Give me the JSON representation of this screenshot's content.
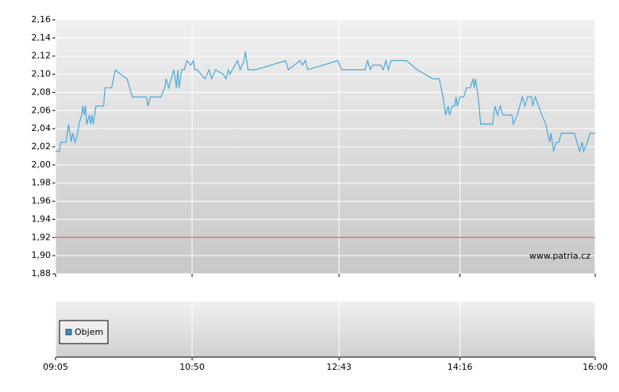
{
  "chart_data": [
    {
      "type": "line",
      "color": "#4aa8d8",
      "x": [
        "09:05",
        "09:08",
        "09:09",
        "09:13",
        "09:15",
        "09:17",
        "09:18",
        "09:20",
        "09:22",
        "09:23",
        "09:25",
        "09:26",
        "09:27",
        "09:28",
        "09:29",
        "09:31",
        "09:32",
        "09:33",
        "09:34",
        "09:36",
        "09:42",
        "09:43",
        "09:48",
        "09:51",
        "09:55",
        "10:00",
        "10:04",
        "10:15",
        "10:16",
        "10:18",
        "10:26",
        "10:29",
        "10:30",
        "10:32",
        "10:34",
        "10:36",
        "10:38",
        "10:39",
        "10:40",
        "10:42",
        "10:44",
        "10:46",
        "10:49",
        "10:51",
        "10:52",
        "10:54",
        "10:57",
        "11:00",
        "11:03",
        "11:05",
        "11:08",
        "11:14",
        "11:16",
        "11:18",
        "11:19",
        "11:21",
        "11:25",
        "11:27",
        "11:30",
        "11:31",
        "11:33",
        "11:39",
        "12:02",
        "12:04",
        "12:13",
        "12:15",
        "12:17",
        "12:19",
        "12:42",
        "12:45",
        "13:03",
        "13:05",
        "13:07",
        "13:09",
        "13:15",
        "13:17",
        "13:19",
        "13:21",
        "13:23",
        "13:35",
        "13:43",
        "13:55",
        "14:00",
        "14:03",
        "14:05",
        "14:07",
        "14:08",
        "14:10",
        "14:12",
        "14:13",
        "14:14",
        "14:16",
        "14:19",
        "14:21",
        "14:24",
        "14:26",
        "14:27",
        "14:28",
        "14:30",
        "14:32",
        "14:41",
        "14:43",
        "14:45",
        "14:47",
        "14:49",
        "14:56",
        "14:57",
        "15:00",
        "15:02",
        "15:04",
        "15:06",
        "15:08",
        "15:11",
        "15:12",
        "15:14",
        "15:19",
        "15:22",
        "15:25",
        "15:26",
        "15:28",
        "15:30",
        "15:32",
        "15:34",
        "15:44",
        "15:46",
        "15:48",
        "15:50",
        "15:51",
        "15:54",
        "15:56",
        "16:00"
      ],
      "values": [
        2.015,
        2.015,
        2.025,
        2.025,
        2.045,
        2.025,
        2.035,
        2.025,
        2.035,
        2.045,
        2.055,
        2.065,
        2.055,
        2.065,
        2.045,
        2.055,
        2.045,
        2.055,
        2.045,
        2.065,
        2.065,
        2.085,
        2.085,
        2.105,
        2.1,
        2.095,
        2.075,
        2.075,
        2.065,
        2.075,
        2.075,
        2.085,
        2.095,
        2.085,
        2.095,
        2.105,
        2.085,
        2.105,
        2.085,
        2.105,
        2.105,
        2.115,
        2.11,
        2.115,
        2.105,
        2.105,
        2.1,
        2.095,
        2.105,
        2.095,
        2.105,
        2.1,
        2.095,
        2.105,
        2.1,
        2.105,
        2.115,
        2.105,
        2.115,
        2.125,
        2.105,
        2.105,
        2.115,
        2.105,
        2.115,
        2.11,
        2.115,
        2.105,
        2.115,
        2.105,
        2.105,
        2.115,
        2.105,
        2.11,
        2.11,
        2.105,
        2.115,
        2.105,
        2.115,
        2.115,
        2.105,
        2.095,
        2.095,
        2.075,
        2.055,
        2.065,
        2.055,
        2.065,
        2.065,
        2.075,
        2.065,
        2.075,
        2.075,
        2.085,
        2.085,
        2.095,
        2.085,
        2.095,
        2.075,
        2.045,
        2.045,
        2.065,
        2.055,
        2.065,
        2.055,
        2.055,
        2.045,
        2.055,
        2.065,
        2.075,
        2.065,
        2.075,
        2.075,
        2.065,
        2.075,
        2.055,
        2.045,
        2.025,
        2.035,
        2.015,
        2.025,
        2.025,
        2.035,
        2.035,
        2.025,
        2.015,
        2.025,
        2.015,
        2.025,
        2.035,
        2.035
      ],
      "xlim": [
        "09:05",
        "16:00"
      ],
      "xticks": [
        "09:05",
        "10:50",
        "12:43",
        "14:16",
        "16:00"
      ],
      "ylim": [
        1.88,
        2.16
      ],
      "yticks": [
        {
          "value": 1.88,
          "label": "1,88"
        },
        {
          "value": 1.9,
          "label": "1,90"
        },
        {
          "value": 1.92,
          "label": "1,92"
        },
        {
          "value": 1.94,
          "label": "1,94"
        },
        {
          "value": 1.96,
          "label": "1,96"
        },
        {
          "value": 1.98,
          "label": "1,98"
        },
        {
          "value": 2,
          "label": "2,00"
        },
        {
          "value": 2.02,
          "label": "2,02"
        },
        {
          "value": 2.04,
          "label": "2,04"
        },
        {
          "value": 2.06,
          "label": "2,06"
        },
        {
          "value": 2.08,
          "label": "2,08"
        },
        {
          "value": 2.1,
          "label": "2,10"
        },
        {
          "value": 2.12,
          "label": "2,12"
        },
        {
          "value": 2.14,
          "label": "2,14"
        },
        {
          "value": 2.16,
          "label": "2,16"
        }
      ],
      "reference_line": {
        "value": 1.92,
        "color": "#e06060"
      },
      "source": "www.patria.cz",
      "grid": true
    },
    {
      "type": "bar",
      "series": [
        {
          "name": "Objem",
          "color": "#3d8ec9",
          "values": []
        }
      ],
      "legend": "bottom-left"
    }
  ]
}
